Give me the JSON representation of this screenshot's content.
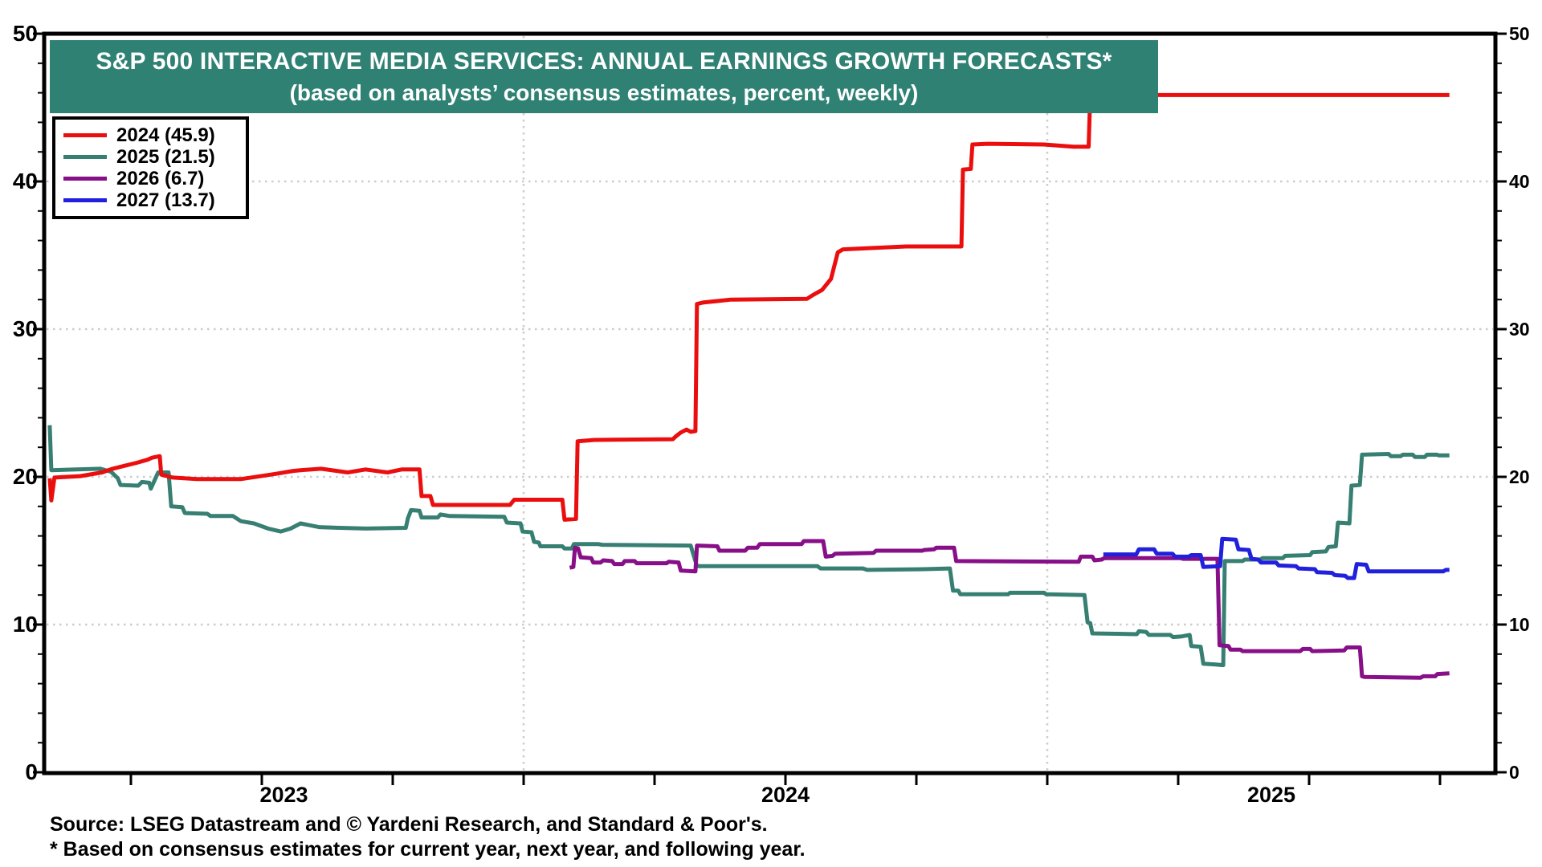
{
  "title": {
    "line1": "S&P 500 INTERACTIVE MEDIA SERVICES: ANNUAL EARNINGS GROWTH FORECASTS*",
    "line2": "(based on analysts’ consensus estimates, percent, weekly)"
  },
  "legend": {
    "items": [
      {
        "label": "2024 (45.9)",
        "color": "#ea0e0e"
      },
      {
        "label": "2025 (21.5)",
        "color": "#377f72"
      },
      {
        "label": "2026 (6.7)",
        "color": "#870f87"
      },
      {
        "label": "2027 (13.7)",
        "color": "#2121dd"
      }
    ]
  },
  "footer": {
    "source": "Source: LSEG Datastream and © Yardeni Research, and Standard & Poor's.",
    "note": "* Based on consensus estimates for current year, next year, and following year."
  },
  "colors": {
    "banner": "#2f8174",
    "grid": "#cccccc",
    "frame": "#000000",
    "background": "#ffffff"
  },
  "axes": {
    "y_major_ticks": [
      0,
      10,
      20,
      30,
      40,
      50
    ],
    "y_minor_step": 2,
    "y_range": [
      0,
      50
    ],
    "x_year_labels": [
      "2023",
      "2024",
      "2025"
    ],
    "x_gridline_years": [
      2024,
      2025
    ],
    "x_quarter_tick_years": [
      2023.25,
      2023.5,
      2023.75,
      2024.0,
      2024.25,
      2024.5,
      2024.75,
      2025.0,
      2025.25,
      2025.5,
      2025.75
    ]
  },
  "chart_data": {
    "type": "line",
    "title": "S&P 500 Interactive Media Services: Annual Earnings Growth Forecasts",
    "x_unit": "decimal_year",
    "y_unit": "percent",
    "x_range": [
      2023.084,
      2025.77
    ],
    "ylim": [
      0,
      50
    ],
    "grid": "dotted",
    "legend_position": "top-left",
    "series": [
      {
        "name": "2024",
        "final_value": 45.9,
        "color": "#ea0e0e",
        "points": [
          [
            2023.095,
            19.9
          ],
          [
            2023.098,
            18.4
          ],
          [
            2023.104,
            19.95
          ],
          [
            2023.153,
            20.05
          ],
          [
            2023.195,
            20.3
          ],
          [
            2023.215,
            20.55
          ],
          [
            2023.238,
            20.75
          ],
          [
            2023.261,
            20.95
          ],
          [
            2023.281,
            21.15
          ],
          [
            2023.291,
            21.3
          ],
          [
            2023.305,
            21.4
          ],
          [
            2023.308,
            20.15
          ],
          [
            2023.33,
            19.95
          ],
          [
            2023.376,
            19.85
          ],
          [
            2023.46,
            19.85
          ],
          [
            2023.526,
            20.2
          ],
          [
            2023.56,
            20.4
          ],
          [
            2023.574,
            20.45
          ],
          [
            2023.613,
            20.55
          ],
          [
            2023.664,
            20.3
          ],
          [
            2023.698,
            20.5
          ],
          [
            2023.74,
            20.3
          ],
          [
            2023.767,
            20.5
          ],
          [
            2023.801,
            20.5
          ],
          [
            2023.805,
            18.7
          ],
          [
            2023.822,
            18.7
          ],
          [
            2023.827,
            18.1
          ],
          [
            2023.974,
            18.1
          ],
          [
            2023.982,
            18.45
          ],
          [
            2024.074,
            18.45
          ],
          [
            2024.078,
            17.1
          ],
          [
            2024.1,
            17.15
          ],
          [
            2024.103,
            22.4
          ],
          [
            2024.135,
            22.5
          ],
          [
            2024.285,
            22.55
          ],
          [
            2024.291,
            22.75
          ],
          [
            2024.3,
            23.0
          ],
          [
            2024.311,
            23.2
          ],
          [
            2024.319,
            23.05
          ],
          [
            2024.328,
            23.1
          ],
          [
            2024.331,
            31.7
          ],
          [
            2024.342,
            31.8
          ],
          [
            2024.396,
            32.0
          ],
          [
            2024.541,
            32.05
          ],
          [
            2024.552,
            32.3
          ],
          [
            2024.57,
            32.65
          ],
          [
            2024.587,
            33.4
          ],
          [
            2024.6,
            35.2
          ],
          [
            2024.61,
            35.4
          ],
          [
            2024.73,
            35.6
          ],
          [
            2024.836,
            35.6
          ],
          [
            2024.839,
            40.8
          ],
          [
            2024.854,
            40.85
          ],
          [
            2024.857,
            42.5
          ],
          [
            2024.886,
            42.55
          ],
          [
            2024.994,
            42.5
          ],
          [
            2025.05,
            42.35
          ],
          [
            2025.079,
            42.35
          ],
          [
            2025.082,
            45.85
          ],
          [
            2025.768,
            45.85
          ]
        ]
      },
      {
        "name": "2025",
        "final_value": 21.5,
        "color": "#377f72",
        "points": [
          [
            2023.095,
            23.5
          ],
          [
            2023.098,
            20.45
          ],
          [
            2023.146,
            20.5
          ],
          [
            2023.192,
            20.55
          ],
          [
            2023.212,
            20.35
          ],
          [
            2023.225,
            19.9
          ],
          [
            2023.23,
            19.45
          ],
          [
            2023.264,
            19.4
          ],
          [
            2023.271,
            19.65
          ],
          [
            2023.285,
            19.6
          ],
          [
            2023.288,
            19.2
          ],
          [
            2023.302,
            20.3
          ],
          [
            2023.322,
            20.3
          ],
          [
            2023.327,
            18.0
          ],
          [
            2023.348,
            17.95
          ],
          [
            2023.353,
            17.55
          ],
          [
            2023.396,
            17.5
          ],
          [
            2023.402,
            17.35
          ],
          [
            2023.445,
            17.35
          ],
          [
            2023.46,
            17.0
          ],
          [
            2023.485,
            16.85
          ],
          [
            2023.512,
            16.5
          ],
          [
            2023.536,
            16.3
          ],
          [
            2023.555,
            16.5
          ],
          [
            2023.574,
            16.85
          ],
          [
            2023.609,
            16.6
          ],
          [
            2023.648,
            16.55
          ],
          [
            2023.699,
            16.5
          ],
          [
            2023.775,
            16.55
          ],
          [
            2023.779,
            17.2
          ],
          [
            2023.785,
            17.75
          ],
          [
            2023.801,
            17.7
          ],
          [
            2023.805,
            17.25
          ],
          [
            2023.836,
            17.25
          ],
          [
            2023.841,
            17.45
          ],
          [
            2023.859,
            17.35
          ],
          [
            2023.963,
            17.3
          ],
          [
            2023.968,
            16.9
          ],
          [
            2023.994,
            16.85
          ],
          [
            2023.998,
            16.3
          ],
          [
            2024.015,
            16.25
          ],
          [
            2024.02,
            15.6
          ],
          [
            2024.029,
            15.55
          ],
          [
            2024.032,
            15.3
          ],
          [
            2024.074,
            15.3
          ],
          [
            2024.078,
            15.15
          ],
          [
            2024.092,
            15.15
          ],
          [
            2024.096,
            15.45
          ],
          [
            2024.142,
            15.45
          ],
          [
            2024.15,
            15.4
          ],
          [
            2024.319,
            15.35
          ],
          [
            2024.331,
            13.95
          ],
          [
            2024.561,
            13.95
          ],
          [
            2024.567,
            13.8
          ],
          [
            2024.648,
            13.8
          ],
          [
            2024.656,
            13.7
          ],
          [
            2024.764,
            13.75
          ],
          [
            2024.814,
            13.8
          ],
          [
            2024.82,
            12.3
          ],
          [
            2024.83,
            12.3
          ],
          [
            2024.834,
            12.05
          ],
          [
            2024.925,
            12.05
          ],
          [
            2024.929,
            12.15
          ],
          [
            2024.994,
            12.15
          ],
          [
            2024.998,
            12.05
          ],
          [
            2025.071,
            12.0
          ],
          [
            2025.077,
            10.15
          ],
          [
            2025.082,
            10.1
          ],
          [
            2025.086,
            9.4
          ],
          [
            2025.171,
            9.35
          ],
          [
            2025.175,
            9.55
          ],
          [
            2025.189,
            9.5
          ],
          [
            2025.194,
            9.3
          ],
          [
            2025.235,
            9.3
          ],
          [
            2025.24,
            9.15
          ],
          [
            2025.257,
            9.2
          ],
          [
            2025.272,
            9.3
          ],
          [
            2025.275,
            8.55
          ],
          [
            2025.293,
            8.5
          ],
          [
            2025.298,
            7.35
          ],
          [
            2025.322,
            7.3
          ],
          [
            2025.336,
            7.25
          ],
          [
            2025.339,
            14.3
          ],
          [
            2025.373,
            14.3
          ],
          [
            2025.377,
            14.4
          ],
          [
            2025.407,
            14.4
          ],
          [
            2025.411,
            14.5
          ],
          [
            2025.45,
            14.5
          ],
          [
            2025.454,
            14.65
          ],
          [
            2025.502,
            14.7
          ],
          [
            2025.506,
            14.9
          ],
          [
            2025.532,
            14.95
          ],
          [
            2025.537,
            15.25
          ],
          [
            2025.551,
            15.3
          ],
          [
            2025.555,
            16.9
          ],
          [
            2025.577,
            16.85
          ],
          [
            2025.581,
            19.4
          ],
          [
            2025.597,
            19.45
          ],
          [
            2025.601,
            21.5
          ],
          [
            2025.652,
            21.55
          ],
          [
            2025.656,
            21.4
          ],
          [
            2025.675,
            21.4
          ],
          [
            2025.679,
            21.5
          ],
          [
            2025.698,
            21.5
          ],
          [
            2025.702,
            21.35
          ],
          [
            2025.721,
            21.35
          ],
          [
            2025.725,
            21.5
          ],
          [
            2025.744,
            21.5
          ],
          [
            2025.748,
            21.45
          ],
          [
            2025.768,
            21.45
          ]
        ]
      },
      {
        "name": "2026",
        "final_value": 6.7,
        "color": "#870f87",
        "points": [
          [
            2024.088,
            13.85
          ],
          [
            2024.095,
            13.9
          ],
          [
            2024.098,
            15.2
          ],
          [
            2024.104,
            15.15
          ],
          [
            2024.109,
            14.55
          ],
          [
            2024.129,
            14.5
          ],
          [
            2024.133,
            14.2
          ],
          [
            2024.147,
            14.2
          ],
          [
            2024.152,
            14.35
          ],
          [
            2024.169,
            14.3
          ],
          [
            2024.173,
            14.1
          ],
          [
            2024.189,
            14.1
          ],
          [
            2024.193,
            14.3
          ],
          [
            2024.212,
            14.3
          ],
          [
            2024.216,
            14.15
          ],
          [
            2024.273,
            14.15
          ],
          [
            2024.277,
            14.25
          ],
          [
            2024.296,
            14.2
          ],
          [
            2024.3,
            13.65
          ],
          [
            2024.328,
            13.6
          ],
          [
            2024.331,
            15.35
          ],
          [
            2024.37,
            15.3
          ],
          [
            2024.374,
            15.0
          ],
          [
            2024.423,
            15.0
          ],
          [
            2024.428,
            15.2
          ],
          [
            2024.446,
            15.2
          ],
          [
            2024.451,
            15.45
          ],
          [
            2024.531,
            15.45
          ],
          [
            2024.535,
            15.65
          ],
          [
            2024.572,
            15.65
          ],
          [
            2024.577,
            14.6
          ],
          [
            2024.59,
            14.65
          ],
          [
            2024.595,
            14.8
          ],
          [
            2024.668,
            14.85
          ],
          [
            2024.673,
            15.0
          ],
          [
            2024.761,
            15.0
          ],
          [
            2024.765,
            15.05
          ],
          [
            2024.784,
            15.1
          ],
          [
            2024.788,
            15.2
          ],
          [
            2024.822,
            15.2
          ],
          [
            2024.826,
            14.3
          ],
          [
            2025.06,
            14.25
          ],
          [
            2025.064,
            14.6
          ],
          [
            2025.086,
            14.6
          ],
          [
            2025.09,
            14.35
          ],
          [
            2025.104,
            14.4
          ],
          [
            2025.109,
            14.5
          ],
          [
            2025.254,
            14.5
          ],
          [
            2025.259,
            14.45
          ],
          [
            2025.325,
            14.45
          ],
          [
            2025.329,
            8.6
          ],
          [
            2025.346,
            8.55
          ],
          [
            2025.35,
            8.3
          ],
          [
            2025.369,
            8.3
          ],
          [
            2025.373,
            8.2
          ],
          [
            2025.483,
            8.2
          ],
          [
            2025.488,
            8.35
          ],
          [
            2025.502,
            8.35
          ],
          [
            2025.506,
            8.2
          ],
          [
            2025.567,
            8.25
          ],
          [
            2025.572,
            8.45
          ],
          [
            2025.597,
            8.45
          ],
          [
            2025.601,
            6.5
          ],
          [
            2025.606,
            6.45
          ],
          [
            2025.713,
            6.4
          ],
          [
            2025.718,
            6.5
          ],
          [
            2025.741,
            6.5
          ],
          [
            2025.745,
            6.65
          ],
          [
            2025.768,
            6.7
          ]
        ]
      },
      {
        "name": "2027",
        "final_value": 13.7,
        "color": "#2121dd",
        "points": [
          [
            2025.107,
            14.75
          ],
          [
            2025.17,
            14.75
          ],
          [
            2025.175,
            15.1
          ],
          [
            2025.204,
            15.1
          ],
          [
            2025.209,
            14.8
          ],
          [
            2025.239,
            14.8
          ],
          [
            2025.244,
            14.6
          ],
          [
            2025.27,
            14.6
          ],
          [
            2025.275,
            14.7
          ],
          [
            2025.293,
            14.7
          ],
          [
            2025.298,
            13.9
          ],
          [
            2025.33,
            13.95
          ],
          [
            2025.334,
            15.8
          ],
          [
            2025.36,
            15.75
          ],
          [
            2025.365,
            15.1
          ],
          [
            2025.385,
            15.05
          ],
          [
            2025.39,
            14.45
          ],
          [
            2025.403,
            14.4
          ],
          [
            2025.408,
            14.2
          ],
          [
            2025.437,
            14.2
          ],
          [
            2025.442,
            14.0
          ],
          [
            2025.475,
            13.95
          ],
          [
            2025.48,
            13.8
          ],
          [
            2025.511,
            13.75
          ],
          [
            2025.515,
            13.55
          ],
          [
            2025.544,
            13.5
          ],
          [
            2025.549,
            13.35
          ],
          [
            2025.569,
            13.3
          ],
          [
            2025.574,
            13.15
          ],
          [
            2025.586,
            13.15
          ],
          [
            2025.591,
            14.1
          ],
          [
            2025.609,
            14.05
          ],
          [
            2025.614,
            13.6
          ],
          [
            2025.756,
            13.6
          ],
          [
            2025.761,
            13.7
          ],
          [
            2025.768,
            13.7
          ]
        ]
      }
    ]
  }
}
